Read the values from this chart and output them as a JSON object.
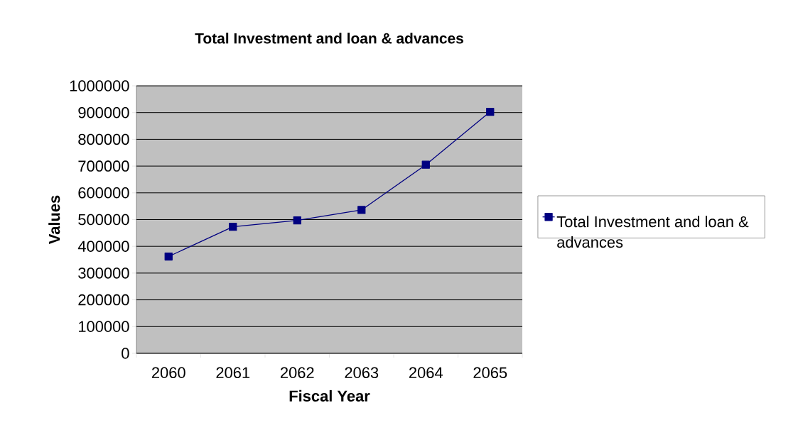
{
  "chart_data": {
    "type": "line",
    "title": "Total Investment and loan & advances",
    "xlabel": "Fiscal Year",
    "ylabel": "Values",
    "categories": [
      "2060",
      "2061",
      "2062",
      "2063",
      "2064",
      "2065"
    ],
    "series": [
      {
        "name": "Total Investment and loan & advances",
        "color": "#000080",
        "values": [
          362000,
          473000,
          497000,
          536000,
          705000,
          903000
        ]
      }
    ],
    "ylim": [
      0,
      1000000
    ],
    "yticks": [
      0,
      100000,
      200000,
      300000,
      400000,
      500000,
      600000,
      700000,
      800000,
      900000,
      1000000
    ],
    "grid": "y",
    "legend": "right",
    "marker": "square",
    "line_style": "solid"
  }
}
